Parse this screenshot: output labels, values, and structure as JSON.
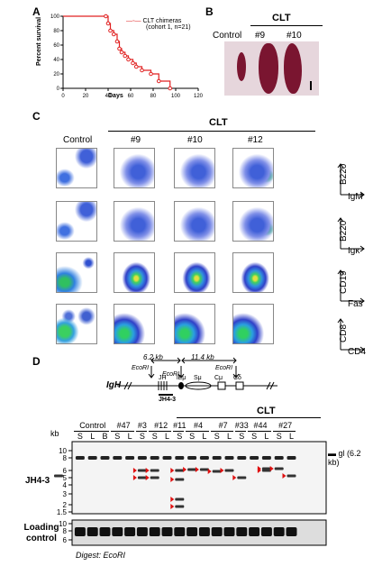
{
  "panel_a": {
    "label": "A",
    "legend": "CLT chimeras",
    "legend_sub": "(cohort 1, n=21)",
    "ylabel": "Percent survival",
    "xlabel": "Days",
    "color": "#e02020",
    "chart_data": {
      "type": "line",
      "title": "",
      "xlabel": "Days",
      "ylabel": "Percent survival",
      "xlim": [
        0,
        120
      ],
      "ylim": [
        0,
        100
      ],
      "xticks": [
        0,
        20,
        40,
        60,
        80,
        100,
        120
      ],
      "yticks": [
        0,
        20,
        40,
        60,
        80,
        100
      ],
      "series": [
        {
          "name": "CLT chimeras (cohort 1, n=21)",
          "step": true,
          "x": [
            0,
            38,
            40,
            42,
            45,
            48,
            50,
            52,
            55,
            58,
            62,
            65,
            70,
            78,
            85,
            95
          ],
          "y": [
            100,
            100,
            90,
            80,
            75,
            65,
            55,
            50,
            45,
            40,
            35,
            30,
            25,
            20,
            10,
            0
          ]
        }
      ]
    }
  },
  "panel_b": {
    "label": "B",
    "group_label": "CLT",
    "columns": [
      "Control",
      "#9",
      "#10"
    ],
    "organ_color": "#7a1530",
    "bg_color": "#e6d6dc"
  },
  "panel_c": {
    "label": "C",
    "group_label": "CLT",
    "columns": [
      "Control",
      "#9",
      "#10",
      "#12"
    ],
    "rows": [
      {
        "y": "B220",
        "x": "IgM"
      },
      {
        "y": "B220",
        "x": "Igκ"
      },
      {
        "y": "CD19",
        "x": "Fas"
      },
      {
        "y": "CD8",
        "x": "CD4"
      }
    ]
  },
  "panel_d": {
    "label": "D",
    "locus": "IgH",
    "dist_left": "6.2 kb",
    "dist_right": "11.4 kb",
    "site_labels": [
      "EcoRI",
      "EcoRI",
      "EcoRI"
    ],
    "gene_labels": [
      "JH",
      "iEμ",
      "Sμ",
      "Cμ",
      "Cδ"
    ],
    "probe_label": "JH4-3",
    "group_label": "CLT",
    "blot_label": "JH4-3",
    "loading_label": "Loading control",
    "digest_label": "Digest: EcoRI",
    "kb_label": "kb",
    "gl_label": "gl (6.2 kb)",
    "ladder": [
      "10",
      "8",
      "6",
      "5",
      "4",
      "3",
      "2",
      "1.5"
    ],
    "ladder_loading": [
      "10",
      "8",
      "6"
    ],
    "sample_groups": [
      {
        "name": "Control",
        "lanes": [
          "S",
          "L",
          "B"
        ]
      },
      {
        "name": "#47",
        "lanes": [
          "S",
          "L"
        ]
      },
      {
        "name": "#3",
        "lanes": [
          "S"
        ]
      },
      {
        "name": "#12",
        "lanes": [
          "S",
          "L"
        ]
      },
      {
        "name": "#11",
        "lanes": [
          "S"
        ]
      },
      {
        "name": "#4",
        "lanes": [
          "S",
          "L"
        ]
      },
      {
        "name": "#7",
        "lanes": [
          "S",
          "L"
        ]
      },
      {
        "name": "#33",
        "lanes": [
          "S"
        ]
      },
      {
        "name": "#44",
        "lanes": [
          "S",
          "L"
        ]
      },
      {
        "name": "#27",
        "lanes": [
          "S",
          "L"
        ]
      }
    ],
    "arrow_color": "#e01010"
  }
}
